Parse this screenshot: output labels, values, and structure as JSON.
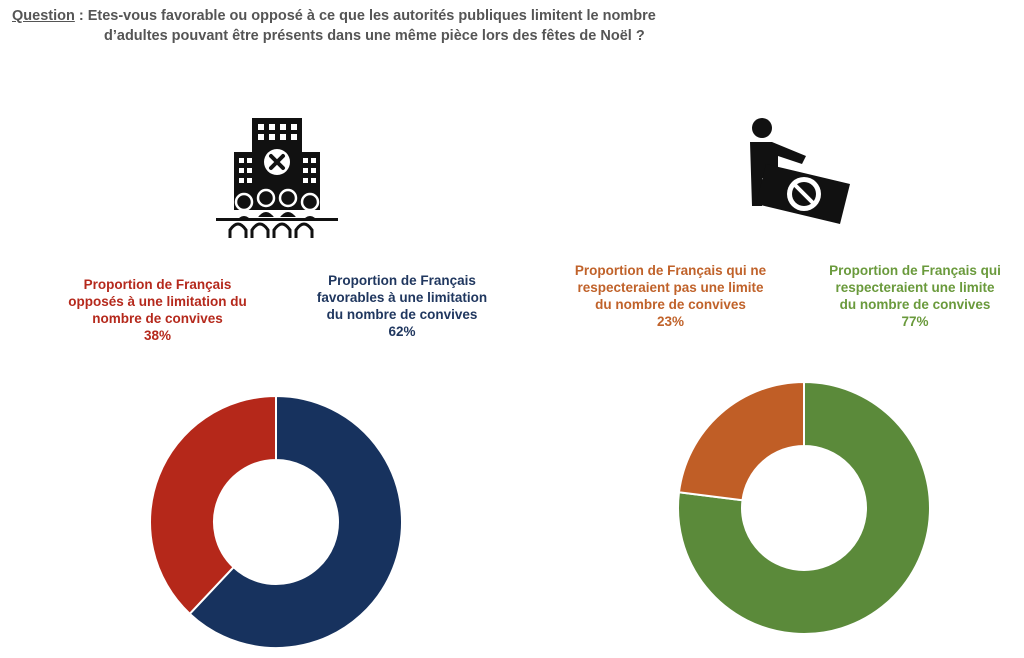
{
  "question": {
    "label": "Question",
    "text_line1": " : Etes-vous favorable ou opposé à ce que les autorités publiques limitent le nombre",
    "text_line2": "d’adultes pouvant être présents dans une même pièce lors des fêtes de Noël ?"
  },
  "left": {
    "label_opposed": {
      "lines": [
        "Proportion de Français",
        "opposés à une limitation du",
        "nombre de convives",
        "38%"
      ],
      "color": "#b5291c"
    },
    "label_favorable": {
      "lines": [
        "Proportion de Français",
        "favorables à une limitation",
        "du nombre de convives",
        "62%"
      ],
      "color": "#20375f"
    },
    "icon": "building-crowd-icon"
  },
  "right": {
    "label_not_respect": {
      "lines": [
        "Proportion de Français qui ne",
        "respecteraient pas une limite",
        "du nombre de convives",
        "23%"
      ],
      "color": "#c0622a"
    },
    "label_respect": {
      "lines": [
        "Proportion de Français qui",
        "respecteraient une limite",
        "du nombre de convives",
        "77%"
      ],
      "color": "#6a9a3c"
    },
    "icon": "person-pushing-prohibited-sign-icon"
  },
  "chart_data": [
    {
      "type": "pie",
      "donut": true,
      "categories": [
        "Favorables à une limitation",
        "Opposés à une limitation"
      ],
      "values": [
        62,
        38
      ],
      "colors": [
        "#17325e",
        "#b5281a"
      ]
    },
    {
      "type": "pie",
      "donut": true,
      "categories": [
        "Respecteraient une limite",
        "Ne respecteraient pas une limite"
      ],
      "values": [
        77,
        23
      ],
      "colors": [
        "#5b8a3a",
        "#c05e26"
      ]
    }
  ]
}
